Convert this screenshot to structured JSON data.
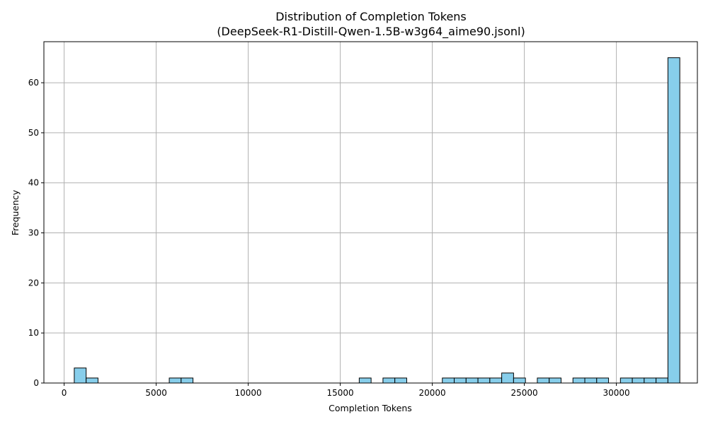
{
  "chart_data": {
    "type": "bar",
    "subtype": "histogram",
    "title": "Distribution of Completion Tokens",
    "subtitle": "(DeepSeek-R1-Distill-Qwen-1.5B-w3g64_aime90.jsonl)",
    "xlabel": "Completion Tokens",
    "ylabel": "Frequency",
    "xlim": [
      -1100,
      34400
    ],
    "ylim": [
      0,
      68.2
    ],
    "xticks": [
      0,
      5000,
      10000,
      15000,
      20000,
      25000,
      30000
    ],
    "yticks": [
      0,
      10,
      20,
      30,
      40,
      50,
      60
    ],
    "bin_start": 550,
    "bin_width": 645,
    "counts": [
      3,
      1,
      0,
      0,
      0,
      0,
      0,
      0,
      1,
      1,
      0,
      0,
      0,
      0,
      0,
      0,
      0,
      0,
      0,
      0,
      0,
      0,
      0,
      0,
      1,
      0,
      1,
      1,
      0,
      0,
      0,
      1,
      1,
      1,
      1,
      1,
      2,
      1,
      0,
      1,
      1,
      0,
      1,
      1,
      1,
      0,
      1,
      1,
      1,
      1,
      65
    ],
    "bar_color": "#87CEEB",
    "edge_color": "#000000",
    "grid": true
  }
}
